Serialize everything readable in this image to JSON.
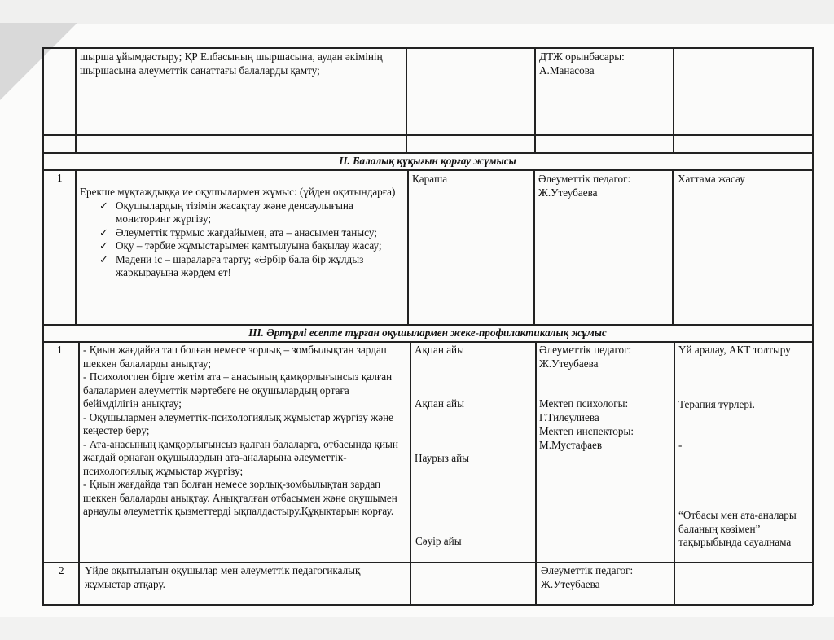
{
  "table": {
    "row_top": {
      "activity": "шырша ұйымдастыру; ҚР Елбасының шыршасына, аудан әкімінің шыршасына әлеуметтік санаттағы балаларды қамту;",
      "responsible": "ДТЖ орынбасары: А.Манасова"
    },
    "section2": {
      "title": "ІІ. Балалық құқығын қорғау жұмысы",
      "row": {
        "num": "1",
        "intro": "Ерекше мұқтаждыққа ие оқушылармен жұмыс:  (үйден оқитындарға)",
        "items": [
          "Оқушылардың  тізімін жасақтау және денсаулығына мониторинг жүргізу;",
          "Әлеуметтік тұрмыс жағдайымен, ата – анасымен танысу;",
          "Оқу – тәрбие жұмыстарымен  қамтылуына бақылау жасау;",
          "Мәдени іс – шараларға тарту; «Әрбір бала бір жұлдыз жарқырауына жәрдем ет!"
        ],
        "check_icon": "✓",
        "date": "Қараша",
        "responsible": "Әлеуметтік педагог: Ж.Утеубаева",
        "result": "Хаттама жасау"
      }
    },
    "section3": {
      "title": "ІІІ. Әртүрлі есепте тұрған оқушылармен жеке-профилактикалық жұмыс",
      "row1": {
        "num": "1",
        "activity": [
          "- Қиын жағдайға тап болған немесе зорлық – зомбылықтан зардап шеккен балаларды анықтау;",
          "- Психологпен бірге жетім ата – анасының қамқорлығынсыз қалған балалармен әлеуметтік мәртебеге не оқушылардың ортаға  бейімділігін анықтау;",
          "- Оқушылармен әлеуметтік-психологиялық жұмыстар жүргізу және кеңестер беру;",
          "- Ата-анасының қамқорлығынсыз қалған балаларға, отбасында қиын жағдай орнаған оқушылардың ата-аналарына әлеуметтік-психологиялық жұмыстар жүргізу;",
          "-  Қиын жағдайда тап болған немесе зорлық-зомбылықтан зардап шеккен балаларды анықтау. Анықталған отбасымен және оқушымен арнаулы әлеуметтік қызметтерді ықпалдастыру.Құқықтарын қорғау."
        ],
        "dates": [
          "Ақпан айы",
          "Ақпан айы",
          "Наурыз айы",
          "Сәуір айы"
        ],
        "responsible": [
          "Әлеуметтік педагог: Ж.Утеубаева",
          "Мектеп психологы: Г.Тилеулиева",
          "Мектеп инспекторы: М.Мустафаев"
        ],
        "results": [
          "Үй аралау, АКТ толтыру",
          "Терапия түрлері.",
          "-",
          "“Отбасы мен ата-аналары баланың көзімен” тақырыбында сауалнама"
        ]
      },
      "row2": {
        "num": "2",
        "activity": "Үйде оқытылатын оқушылар мен әлеуметтік педагогикалық жұмыстар атқару.",
        "responsible": "Әлеуметтік педагог: Ж.Утеубаева"
      }
    }
  }
}
